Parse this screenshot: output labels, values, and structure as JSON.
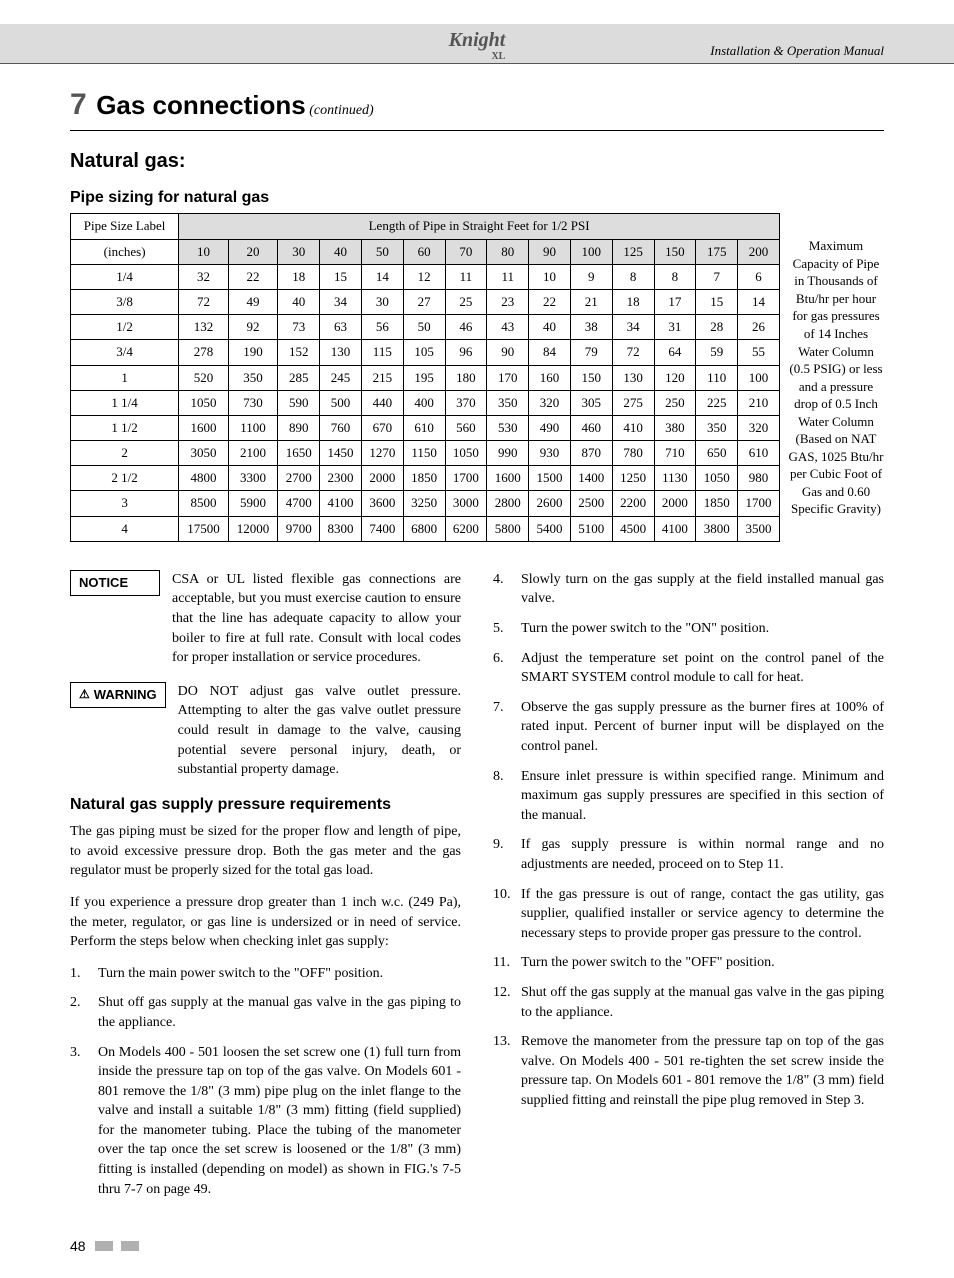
{
  "header": {
    "logo_main": "Knight",
    "logo_sub": "XL",
    "subtitle": "Installation & Operation Manual"
  },
  "section": {
    "number": "7",
    "title": "Gas connections",
    "continued": "(continued)",
    "subtitle": "Natural gas:",
    "subtitle2": "Pipe sizing for natural gas",
    "subtitle3": "Natural gas supply pressure requirements"
  },
  "table": {
    "top_label": "Pipe Size Label",
    "length_header": "Length of Pipe in Straight Feet for 1/2 PSI",
    "pipe_col_label": "(inches)",
    "caption": "Maximum Capacity of Pipe in Thousands of Btu/hr per hour for gas pressures of 14 Inches Water Column (0.5 PSIG) or less and a pressure drop of 0.5 Inch Water Column (Based on NAT GAS, 1025 Btu/hr per Cubic Foot of Gas and 0.60 Specific Gravity)",
    "lengths": [
      "10",
      "20",
      "30",
      "40",
      "50",
      "60",
      "70",
      "80",
      "90",
      "100",
      "125",
      "150",
      "175",
      "200"
    ],
    "rows": [
      {
        "size": "1/4",
        "v": [
          "32",
          "22",
          "18",
          "15",
          "14",
          "12",
          "11",
          "11",
          "10",
          "9",
          "8",
          "8",
          "7",
          "6"
        ]
      },
      {
        "size": "3/8",
        "v": [
          "72",
          "49",
          "40",
          "34",
          "30",
          "27",
          "25",
          "23",
          "22",
          "21",
          "18",
          "17",
          "15",
          "14"
        ]
      },
      {
        "size": "1/2",
        "v": [
          "132",
          "92",
          "73",
          "63",
          "56",
          "50",
          "46",
          "43",
          "40",
          "38",
          "34",
          "31",
          "28",
          "26"
        ]
      },
      {
        "size": "3/4",
        "v": [
          "278",
          "190",
          "152",
          "130",
          "115",
          "105",
          "96",
          "90",
          "84",
          "79",
          "72",
          "64",
          "59",
          "55"
        ]
      },
      {
        "size": "1",
        "v": [
          "520",
          "350",
          "285",
          "245",
          "215",
          "195",
          "180",
          "170",
          "160",
          "150",
          "130",
          "120",
          "110",
          "100"
        ]
      },
      {
        "size": "1 1/4",
        "v": [
          "1050",
          "730",
          "590",
          "500",
          "440",
          "400",
          "370",
          "350",
          "320",
          "305",
          "275",
          "250",
          "225",
          "210"
        ]
      },
      {
        "size": "1 1/2",
        "v": [
          "1600",
          "1100",
          "890",
          "760",
          "670",
          "610",
          "560",
          "530",
          "490",
          "460",
          "410",
          "380",
          "350",
          "320"
        ]
      },
      {
        "size": "2",
        "v": [
          "3050",
          "2100",
          "1650",
          "1450",
          "1270",
          "1150",
          "1050",
          "990",
          "930",
          "870",
          "780",
          "710",
          "650",
          "610"
        ]
      },
      {
        "size": "2 1/2",
        "v": [
          "4800",
          "3300",
          "2700",
          "2300",
          "2000",
          "1850",
          "1700",
          "1600",
          "1500",
          "1400",
          "1250",
          "1130",
          "1050",
          "980"
        ]
      },
      {
        "size": "3",
        "v": [
          "8500",
          "5900",
          "4700",
          "4100",
          "3600",
          "3250",
          "3000",
          "2800",
          "2600",
          "2500",
          "2200",
          "2000",
          "1850",
          "1700"
        ]
      },
      {
        "size": "4",
        "v": [
          "17500",
          "12000",
          "9700",
          "8300",
          "7400",
          "6800",
          "6200",
          "5800",
          "5400",
          "5100",
          "4500",
          "4100",
          "3800",
          "3500"
        ]
      }
    ]
  },
  "callouts": {
    "notice_label": "NOTICE",
    "notice_text": "CSA or UL listed flexible gas connections are acceptable, but you must exercise caution to ensure that the line has adequate capacity to allow your boiler to fire at full rate. Consult with local codes for proper installation or service procedures.",
    "warning_label": "WARNING",
    "warning_text": "DO NOT adjust gas valve outlet pressure. Attempting to alter the gas valve outlet pressure could result in damage to the valve, causing potential severe personal injury, death, or substantial property damage."
  },
  "left_paras": {
    "p1": "The gas piping must be sized for the proper flow and length of pipe, to avoid excessive pressure drop. Both the gas meter and the gas regulator must be properly sized for the total gas load.",
    "p2": "If you experience a pressure drop greater than 1 inch w.c. (249 Pa), the meter, regulator, or gas line is undersized or in need of service. Perform the steps below when checking inlet gas supply:"
  },
  "left_steps": [
    {
      "n": "1.",
      "t": "Turn the main power switch to the \"OFF\" position."
    },
    {
      "n": "2.",
      "t": "Shut off gas supply at the manual gas valve in the gas piping to the appliance."
    },
    {
      "n": "3.",
      "t": "On Models 400 - 501 loosen the set screw one (1) full turn from inside the pressure tap on top of the gas valve. On Models 601 - 801 remove the 1/8\" (3 mm) pipe plug on the inlet flange to the valve and install a suitable 1/8\" (3 mm) fitting (field supplied) for the manometer tubing. Place the tubing of the manometer over the tap once the set screw is loosened or the 1/8\" (3 mm) fitting is installed (depending on model) as shown in FIG.'s 7-5 thru 7-7 on page 49."
    }
  ],
  "right_steps": [
    {
      "n": "4.",
      "t": "Slowly turn on the gas supply at the field installed manual gas valve."
    },
    {
      "n": "5.",
      "t": "Turn the power switch to the \"ON\" position."
    },
    {
      "n": "6.",
      "t": "Adjust the temperature set point on the control panel of the SMART SYSTEM control module to call for heat."
    },
    {
      "n": "7.",
      "t": "Observe the gas supply pressure as the burner fires at 100% of rated input. Percent of burner input will be displayed on the control panel."
    },
    {
      "n": "8.",
      "t": "Ensure inlet pressure is within specified range. Minimum and maximum gas supply pressures are specified in this section of the manual."
    },
    {
      "n": "9.",
      "t": "If gas supply pressure is within normal range and no adjustments are needed, proceed on to Step 11."
    },
    {
      "n": "10.",
      "t": "If the gas pressure is out of range, contact the gas utility, gas supplier, qualified installer or service agency to determine the necessary steps to provide proper gas pressure to the control."
    },
    {
      "n": "11.",
      "t": "Turn the power switch to the \"OFF\" position."
    },
    {
      "n": "12.",
      "t": "Shut off the gas supply at the manual gas valve in the gas piping to the appliance."
    },
    {
      "n": "13.",
      "t": "Remove the manometer from the pressure tap on top of the gas valve. On Models 400 - 501 re-tighten the set screw inside the pressure tap. On Models 601 - 801 remove the 1/8\" (3 mm) field supplied fitting and reinstall the pipe plug removed in Step 3."
    }
  ],
  "footer": {
    "pagenum": "48"
  },
  "colors": {
    "header_bg": "#dcdcdc",
    "section_num": "#555555",
    "footer_block": "#b0b0b0"
  }
}
